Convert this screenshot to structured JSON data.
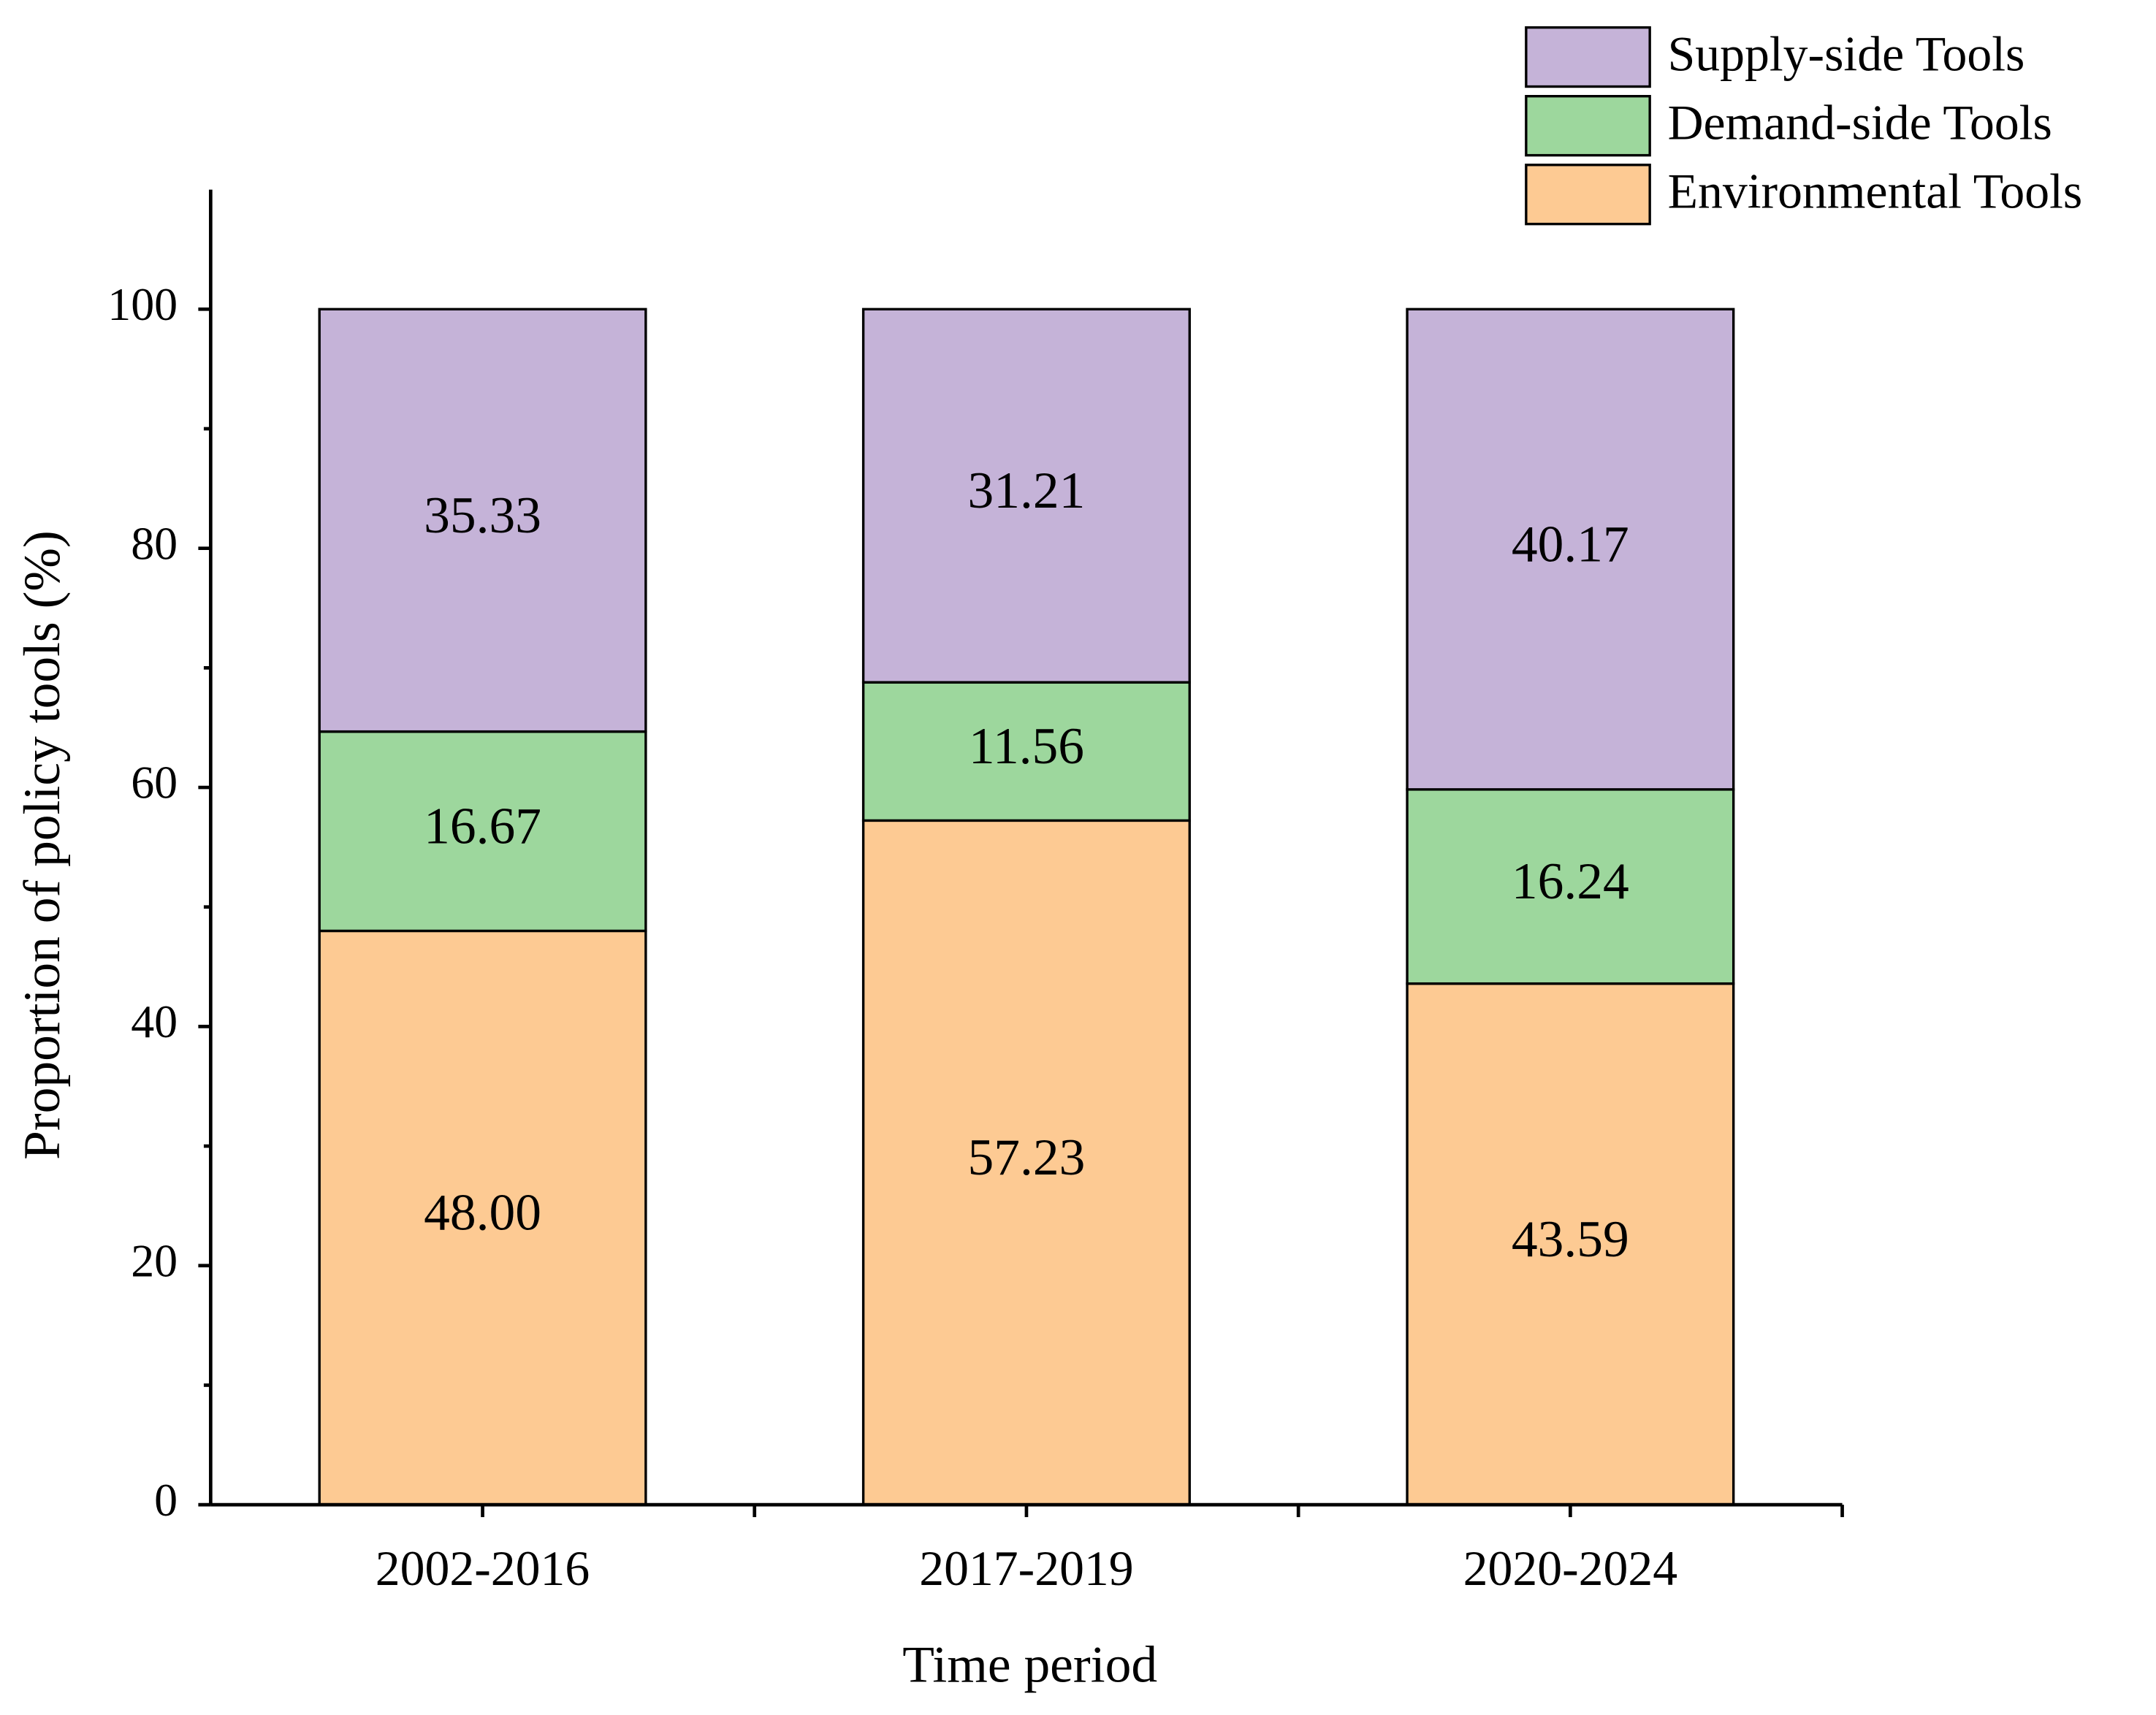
{
  "chart_data": {
    "type": "stacked_bar",
    "x_label": "Time period",
    "y_label": "Proportion of policy tools (%)",
    "categories": [
      "2002-2016",
      "2017-2019",
      "2020-2024"
    ],
    "series": [
      {
        "name": "Environmental Tools",
        "color": "#fdca93",
        "values": [
          48.0,
          57.23,
          43.59
        ],
        "value_labels": [
          "48.00",
          "57.23",
          "43.59"
        ]
      },
      {
        "name": "Demand-side Tools",
        "color": "#9dd79d",
        "values": [
          16.67,
          11.56,
          16.24
        ],
        "value_labels": [
          "16.67",
          "11.56",
          "16.24"
        ]
      },
      {
        "name": "Supply-side Tools",
        "color": "#c5b3d8",
        "values": [
          35.33,
          31.21,
          40.17
        ],
        "value_labels": [
          "35.33",
          "31.21",
          "40.17"
        ]
      }
    ],
    "ylim": [
      0,
      110
    ],
    "yticks": [
      0,
      20,
      40,
      60,
      80,
      100
    ],
    "legend": "top-right",
    "legend_order": "reversed",
    "grid": false
  }
}
